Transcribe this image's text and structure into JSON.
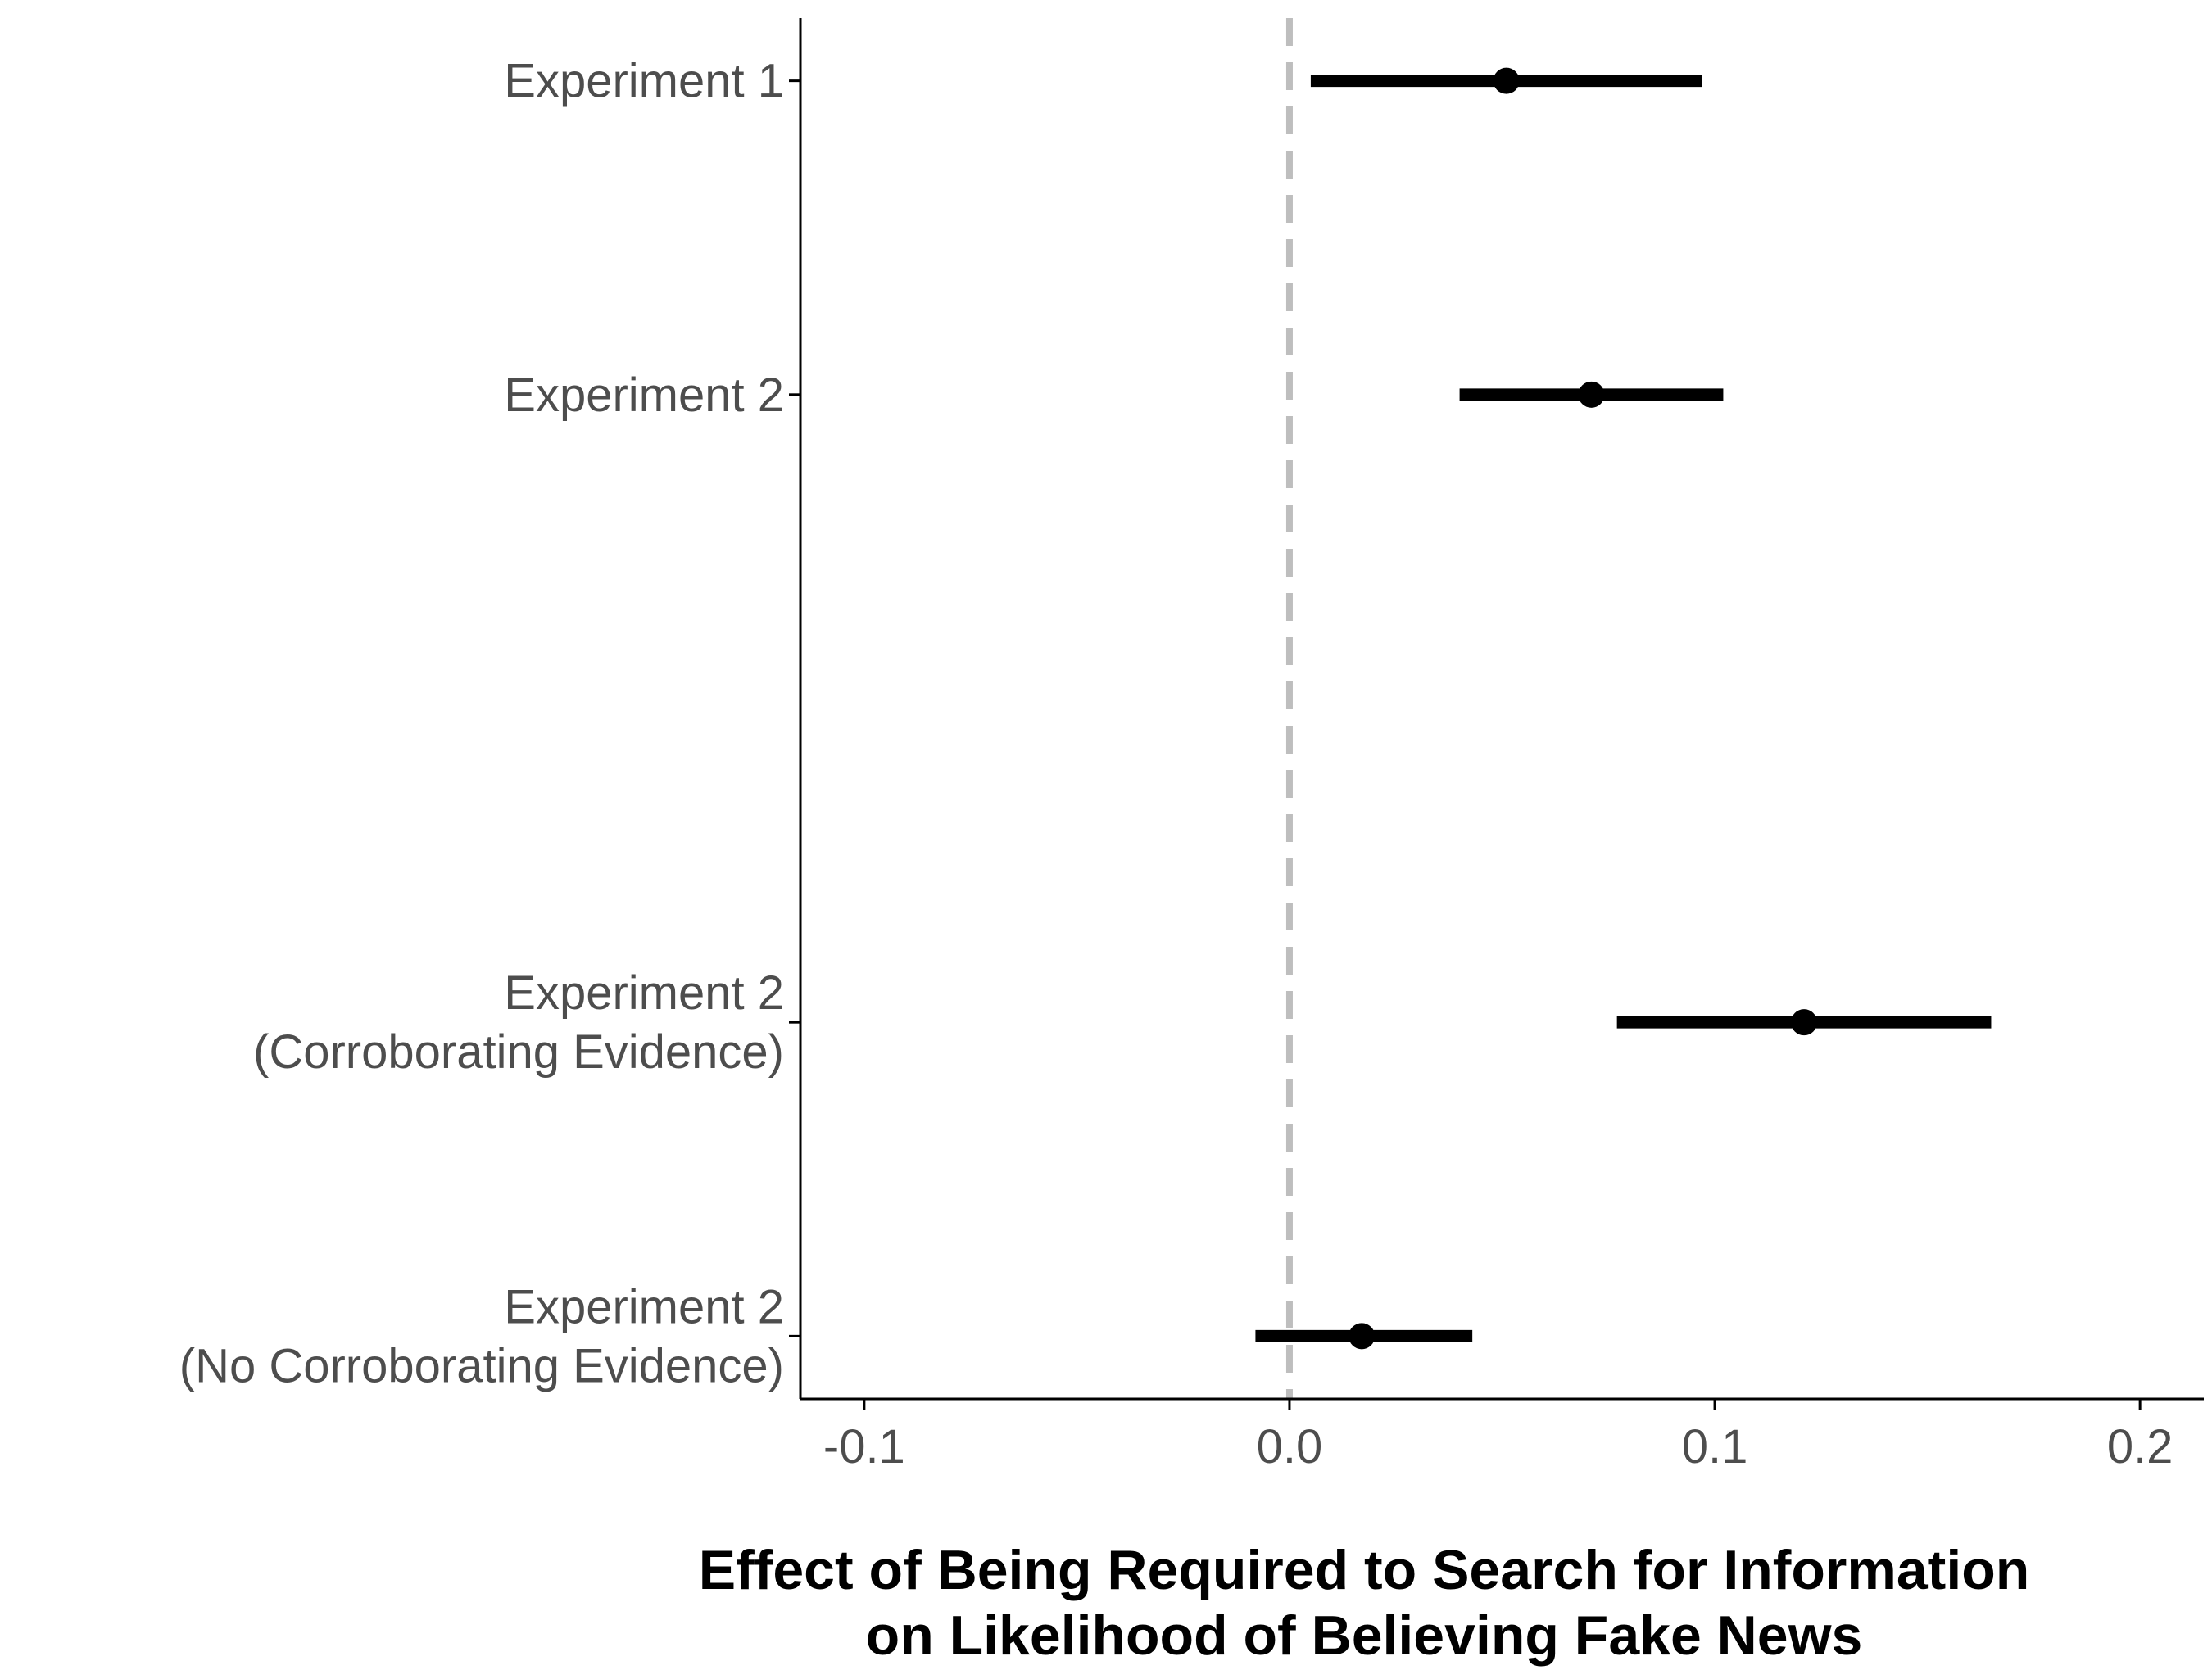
{
  "chart_data": {
    "type": "forest",
    "xlabel_lines": [
      "Effect of Being Required to Search for Information",
      "on Likelihood of Believing Fake News"
    ],
    "ylabel": "",
    "xlim": [
      -0.115,
      0.215
    ],
    "x_ticks": [
      {
        "value": -0.1,
        "label": "-0.1"
      },
      {
        "value": 0.0,
        "label": "0.0"
      },
      {
        "value": 0.1,
        "label": "0.1"
      },
      {
        "value": 0.2,
        "label": "0.2"
      }
    ],
    "reference_line": {
      "x": 0.0,
      "style": "dashed",
      "color": "#bebebe"
    },
    "grid": false,
    "estimates": [
      {
        "label_lines": [
          "Experiment 1"
        ],
        "y": 5.0,
        "estimate": 0.051,
        "ci_low": 0.005,
        "ci_high": 0.097
      },
      {
        "label_lines": [
          "Experiment 2"
        ],
        "y": 4.0,
        "estimate": 0.071,
        "ci_low": 0.04,
        "ci_high": 0.102
      },
      {
        "label_lines": [
          "Experiment 2",
          "(Corroborating Evidence)"
        ],
        "y": 2.0,
        "estimate": 0.121,
        "ci_low": 0.077,
        "ci_high": 0.165
      },
      {
        "label_lines": [
          "Experiment 2",
          "(No Corroborating Evidence)"
        ],
        "y": 1.0,
        "estimate": 0.017,
        "ci_low": -0.008,
        "ci_high": 0.043
      }
    ],
    "ylim": [
      0.8,
      5.2
    ],
    "colors": {
      "mark": "#000000",
      "axis": "#000000",
      "text": "#4d4d4d"
    }
  }
}
